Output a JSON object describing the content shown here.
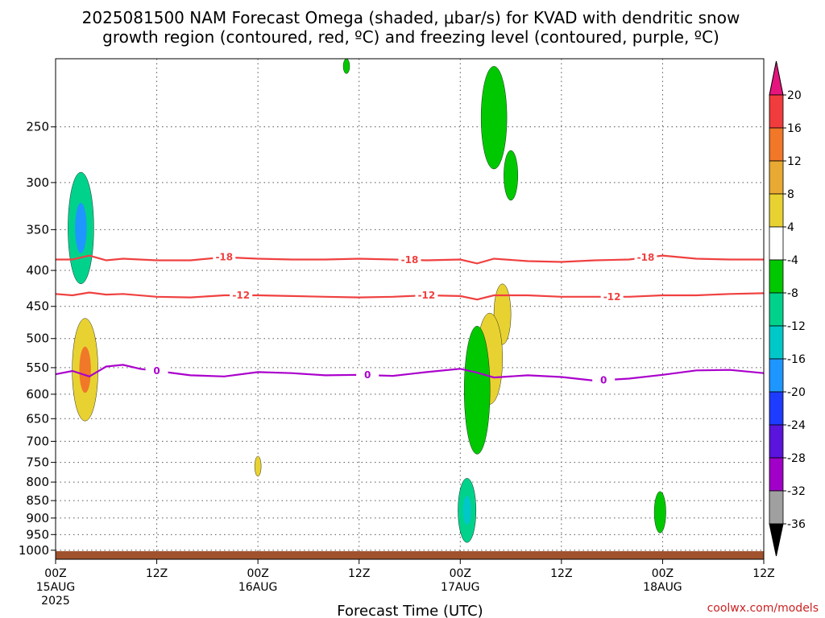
{
  "title_line1": "2025081500 NAM Forecast Omega (shaded, μbar/s) for KVAD with dendritic snow",
  "title_line2": "growth region (contoured, red, ºC) and freezing level (contoured, purple, ºC)",
  "credit": "coolwx.com/models",
  "chart_data": {
    "type": "time-height cross section",
    "title": "2025081500 NAM Forecast Omega (shaded, μbar/s) for KVAD with dendritic snow growth region (contoured, red, ºC) and freezing level (contoured, purple, ºC)",
    "xlabel": "Forecast Time (UTC)",
    "x_ticks": [
      {
        "hour": 0,
        "label": "00Z",
        "sub": "15AUG",
        "sub2": "2025"
      },
      {
        "hour": 12,
        "label": "12Z",
        "sub": "",
        "sub2": ""
      },
      {
        "hour": 24,
        "label": "00Z",
        "sub": "16AUG",
        "sub2": ""
      },
      {
        "hour": 36,
        "label": "12Z",
        "sub": "",
        "sub2": ""
      },
      {
        "hour": 48,
        "label": "00Z",
        "sub": "17AUG",
        "sub2": ""
      },
      {
        "hour": 60,
        "label": "12Z",
        "sub": "",
        "sub2": ""
      },
      {
        "hour": 72,
        "label": "00Z",
        "sub": "18AUG",
        "sub2": ""
      },
      {
        "hour": 84,
        "label": "12Z",
        "sub": "",
        "sub2": ""
      }
    ],
    "xlim": [
      0,
      84
    ],
    "y_ticks": [
      250,
      300,
      350,
      400,
      450,
      500,
      550,
      600,
      650,
      700,
      750,
      800,
      850,
      900,
      950,
      1000
    ],
    "ylim_hpa": [
      200,
      1030
    ],
    "grid": true,
    "colorbar": {
      "labels": [
        "20",
        "16",
        "12",
        "8",
        "4",
        "-4",
        "-8",
        "-12",
        "-16",
        "-20",
        "-24",
        "-28",
        "-32",
        "-36"
      ],
      "colors": [
        "#f03c3c",
        "#f07828",
        "#e8aa32",
        "#e8d232",
        "#ffffff",
        "#00c800",
        "#00d28c",
        "#00c8c8",
        "#1e96ff",
        "#1e3cff",
        "#5a14dc",
        "#a000c8",
        "#a0a0a0"
      ],
      "over_color": "#e6147d",
      "under_color": "#000000"
    },
    "contours": [
      {
        "name": "-18",
        "color": "#f04040",
        "x": [
          0,
          2,
          4,
          6,
          8,
          12,
          16,
          20,
          24,
          28,
          32,
          36,
          40,
          44,
          48,
          50,
          52,
          56,
          60,
          64,
          68,
          72,
          76,
          80,
          84
        ],
        "y": [
          386,
          386,
          381,
          387,
          385,
          387,
          387,
          383,
          385,
          386,
          386,
          385,
          386,
          387,
          386,
          391,
          385,
          388,
          389,
          387,
          386,
          381,
          385,
          386,
          386
        ],
        "labels": [
          {
            "x": 20,
            "text": "-18"
          },
          {
            "x": 42,
            "text": "-18"
          },
          {
            "x": 70,
            "text": "-18"
          }
        ]
      },
      {
        "name": "-12",
        "color": "#f04040",
        "x": [
          0,
          2,
          4,
          6,
          8,
          12,
          16,
          20,
          24,
          28,
          32,
          36,
          40,
          44,
          48,
          50,
          52,
          56,
          60,
          64,
          68,
          72,
          76,
          80,
          84
        ],
        "y": [
          432,
          434,
          430,
          433,
          432,
          436,
          437,
          434,
          434,
          435,
          436,
          437,
          436,
          434,
          435,
          440,
          434,
          434,
          436,
          436,
          436,
          434,
          434,
          432,
          431
        ],
        "labels": [
          {
            "x": 22,
            "text": "-12"
          },
          {
            "x": 44,
            "text": "-12"
          },
          {
            "x": 66,
            "text": "-12"
          }
        ]
      },
      {
        "name": "0",
        "color": "#aa00cc",
        "x": [
          0,
          2,
          4,
          6,
          8,
          10,
          12,
          16,
          20,
          24,
          28,
          32,
          36,
          40,
          44,
          48,
          50,
          52,
          56,
          60,
          64,
          68,
          72,
          76,
          80,
          84
        ],
        "y": [
          562,
          556,
          566,
          548,
          545,
          552,
          556,
          564,
          566,
          558,
          560,
          564,
          563,
          565,
          558,
          552,
          559,
          568,
          564,
          567,
          574,
          570,
          563,
          555,
          554,
          560
        ],
        "labels": [
          {
            "x": 12,
            "text": "0"
          },
          {
            "x": 37,
            "text": "0"
          },
          {
            "x": 65,
            "text": "0"
          }
        ]
      }
    ],
    "omega_features": [
      {
        "kind": "ascent",
        "hour": 3.0,
        "p_top": 290,
        "p_bot": 418,
        "value": -8,
        "core": -16
      },
      {
        "kind": "descent",
        "hour": 3.5,
        "p_top": 468,
        "p_bot": 655,
        "value": 4,
        "core": 12
      },
      {
        "kind": "ascent",
        "hour": 34.5,
        "p_top": 200,
        "p_bot": 210,
        "value": -4
      },
      {
        "kind": "descent",
        "hour": 24.0,
        "p_top": 735,
        "p_bot": 785,
        "value": 4
      },
      {
        "kind": "ascent",
        "hour": 52.0,
        "p_top": 205,
        "p_bot": 287,
        "value": -4
      },
      {
        "kind": "ascent",
        "hour": 54.0,
        "p_top": 270,
        "p_bot": 318,
        "value": -4
      },
      {
        "kind": "descent",
        "hour": 53.0,
        "p_top": 418,
        "p_bot": 510,
        "value": 4
      },
      {
        "kind": "descent",
        "hour": 51.5,
        "p_top": 460,
        "p_bot": 620,
        "value": 4
      },
      {
        "kind": "ascent",
        "hour": 50.0,
        "p_top": 480,
        "p_bot": 730,
        "value": -4
      },
      {
        "kind": "ascent",
        "hour": 48.8,
        "p_top": 790,
        "p_bot": 975,
        "value": -8,
        "core": -12
      },
      {
        "kind": "ascent",
        "hour": 71.7,
        "p_top": 825,
        "p_bot": 945,
        "value": -4
      }
    ],
    "terrain": {
      "p_top": 1003,
      "color": "#a0522d"
    }
  }
}
